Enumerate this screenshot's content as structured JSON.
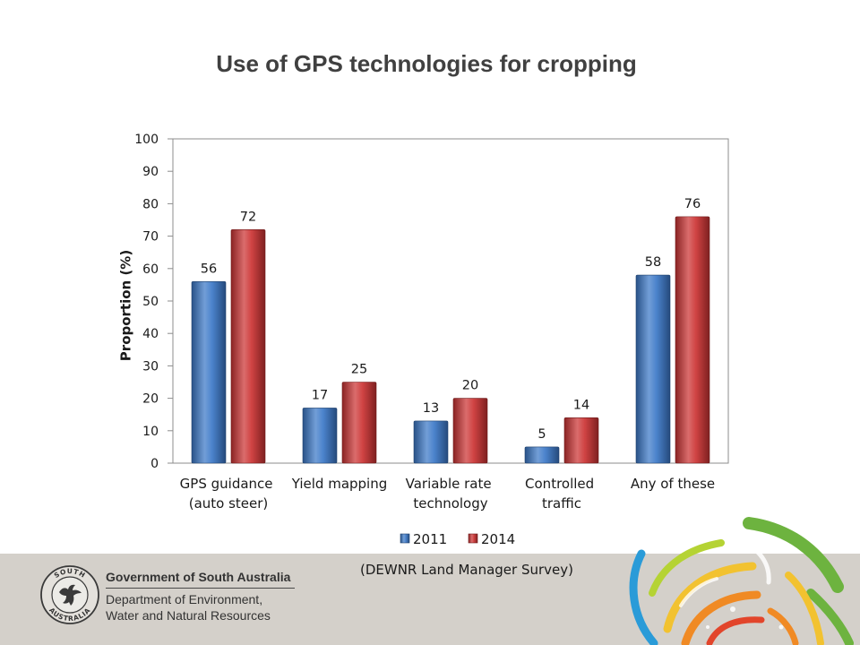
{
  "chart_data": {
    "type": "bar",
    "title": "Use of GPS technologies for cropping",
    "xlabel": "",
    "ylabel": "Proportion (%)",
    "categories": [
      "GPS guidance\n(auto steer)",
      "Yield mapping",
      "Variable rate\ntechnology",
      "Controlled\ntraffic",
      "Any of these"
    ],
    "series": [
      {
        "name": "2011",
        "values": [
          56,
          17,
          13,
          5,
          58
        ],
        "color": "#3b78c8"
      },
      {
        "name": "2014",
        "values": [
          72,
          25,
          20,
          14,
          76
        ],
        "color": "#cc3333"
      }
    ],
    "ylim": [
      0,
      100
    ],
    "yticks": [
      0,
      10,
      20,
      30,
      40,
      50,
      60,
      70,
      80,
      90,
      100
    ],
    "grid": false,
    "legend": "bottom",
    "data_labels": true
  },
  "slide": {
    "source_note": "(DEWNR Land Manager Survey)"
  },
  "footer": {
    "logo_text_top": "SOUTH",
    "logo_text_bottom": "AUSTRALIA",
    "government": "Government of South Australia",
    "department_line1": "Department of Environment,",
    "department_line2": "Water and Natural Resources"
  },
  "theme": {
    "title_color": "#404040",
    "footer_background": "#d4d0ca",
    "swirl_colors": [
      "#6db33f",
      "#f2c230",
      "#f08a24",
      "#e2452b",
      "#2a9bd8",
      "#b5d334"
    ]
  }
}
